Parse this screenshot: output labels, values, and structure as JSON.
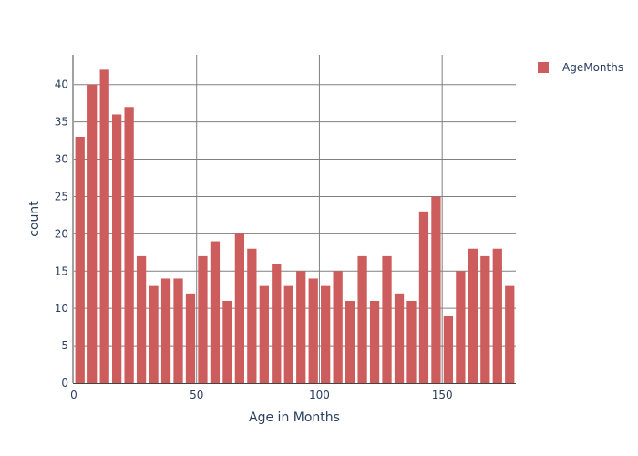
{
  "chart_data": {
    "type": "bar",
    "bin_width": 5,
    "x_start": 0,
    "values": [
      33,
      40,
      42,
      36,
      37,
      17,
      13,
      14,
      14,
      12,
      17,
      19,
      11,
      20,
      18,
      13,
      16,
      13,
      15,
      14,
      13,
      15,
      11,
      17,
      11,
      17,
      12,
      11,
      23,
      25,
      9,
      15,
      18,
      17,
      18,
      13
    ],
    "xlabel": "Age in Months",
    "ylabel": "count",
    "xlim": [
      0,
      180
    ],
    "ylim": [
      0,
      44
    ],
    "x_ticks": [
      0,
      50,
      100,
      150
    ],
    "y_ticks": [
      0,
      5,
      10,
      15,
      20,
      25,
      30,
      35,
      40
    ],
    "legend": {
      "entries": [
        "AgeMonths"
      ],
      "position": "top-right"
    },
    "bar_color": "#cd5c5c",
    "grid_color": "#808080",
    "grid": true
  }
}
